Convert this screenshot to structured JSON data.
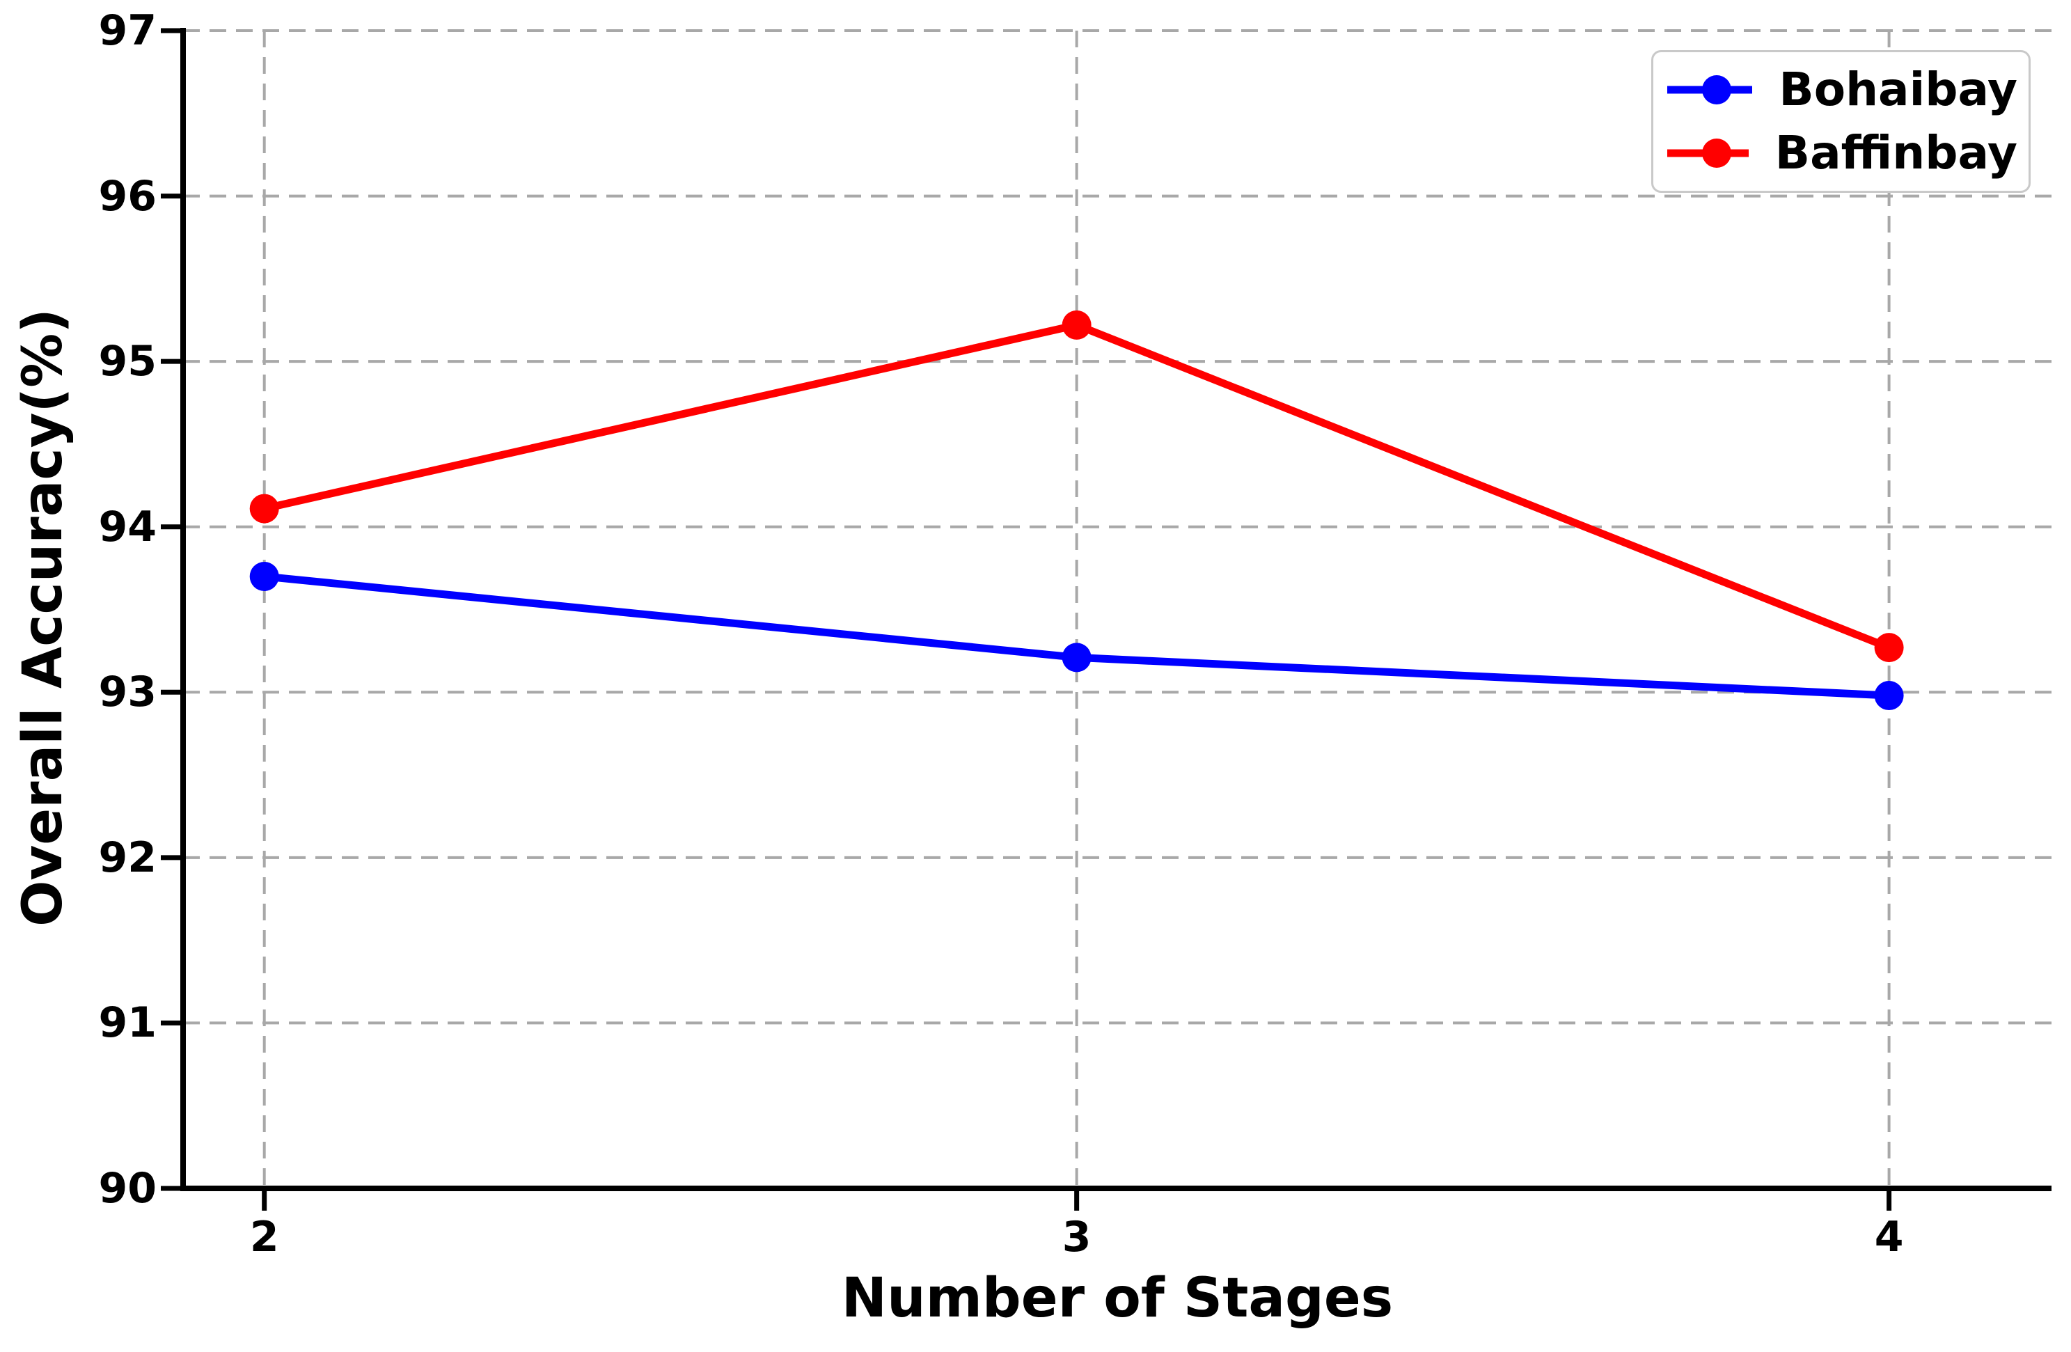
{
  "chart_data": {
    "type": "line",
    "title": "",
    "xlabel": "Number of Stages",
    "ylabel": "Overall Accuracy(%)",
    "x": [
      2,
      3,
      4
    ],
    "xtick_labels": [
      "2",
      "3",
      "4"
    ],
    "yticks": [
      90,
      91,
      92,
      93,
      94,
      95,
      96,
      97
    ],
    "ytick_labels": [
      "90",
      "91",
      "92",
      "93",
      "94",
      "95",
      "96",
      "97"
    ],
    "xlim": [
      1.9,
      4.2
    ],
    "ylim": [
      90,
      97
    ],
    "grid": "on, dashed gray, both axes",
    "marker": "circle",
    "legend_position": "upper right",
    "series": [
      {
        "name": "Bohaibay",
        "color": "#0000ff",
        "values": [
          93.7,
          93.21,
          92.98
        ]
      },
      {
        "name": "Baffinbay",
        "color": "#ff0000",
        "values": [
          94.11,
          95.22,
          93.27
        ]
      }
    ],
    "style": {
      "grid_color": "#a8a8a8",
      "axis_color": "#000000",
      "legend_border_color": "#c9c9c9"
    }
  }
}
